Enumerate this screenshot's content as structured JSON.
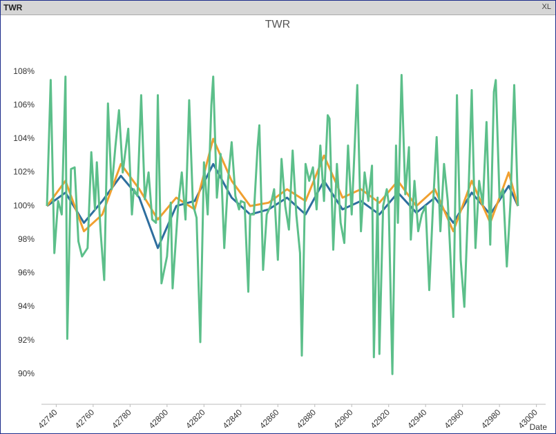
{
  "window": {
    "title": "TWR",
    "button": "XL"
  },
  "chart_data": {
    "type": "line",
    "title": "TWR",
    "x_label": "Date",
    "xlim": [
      42732,
      43005
    ],
    "ylim": [
      88.2,
      110
    ],
    "xticks": [
      42740,
      42760,
      42780,
      42800,
      42820,
      42840,
      42860,
      42880,
      42900,
      42920,
      42940,
      42960,
      42980,
      43000
    ],
    "yticks": [
      {
        "value": 90,
        "label": "90%"
      },
      {
        "value": 92,
        "label": "92%"
      },
      {
        "value": 94,
        "label": "94%"
      },
      {
        "value": 96,
        "label": "96%"
      },
      {
        "value": 98,
        "label": "98%"
      },
      {
        "value": 100,
        "label": "100%"
      },
      {
        "value": 102,
        "label": "102%"
      },
      {
        "value": 104,
        "label": "104%"
      },
      {
        "value": 106,
        "label": "106%"
      },
      {
        "value": 108,
        "label": "108%"
      }
    ],
    "grid": false,
    "series": [
      {
        "color": "#2e6e9e",
        "x": [
          42735,
          42745,
          42755,
          42765,
          42775,
          42785,
          42795,
          42805,
          42815,
          42825,
          42835,
          42845,
          42855,
          42865,
          42875,
          42885,
          42895,
          42905,
          42915,
          42925,
          42935,
          42945,
          42955,
          42965,
          42975,
          42985,
          42990
        ],
        "values": [
          100,
          100.8,
          99,
          100.3,
          101.8,
          100.5,
          97.5,
          100,
          100.3,
          102.5,
          100.5,
          99.5,
          99.8,
          100.5,
          99.5,
          101.5,
          99.8,
          100.3,
          99.5,
          100.8,
          99.6,
          100.5,
          99,
          100.8,
          99.5,
          101.2,
          100
        ]
      },
      {
        "color": "#f0a030",
        "x": [
          42735,
          42745,
          42755,
          42765,
          42775,
          42785,
          42795,
          42805,
          42815,
          42825,
          42835,
          42845,
          42855,
          42865,
          42875,
          42885,
          42895,
          42905,
          42915,
          42925,
          42935,
          42945,
          42955,
          42965,
          42975,
          42985,
          42990
        ],
        "values": [
          100,
          101.5,
          98.5,
          99.5,
          102.5,
          101,
          99.2,
          100.5,
          99.8,
          104,
          101.5,
          100,
          100.2,
          101,
          100.3,
          103,
          100.5,
          101,
          100.2,
          101.5,
          100,
          101,
          98.5,
          101.5,
          99,
          102,
          100
        ]
      },
      {
        "color": "#5cbf8a",
        "x": [
          42735,
          42737,
          42739,
          42741,
          42743,
          42745,
          42746,
          42748,
          42750,
          42752,
          42754,
          42757,
          42759,
          42761,
          42762,
          42764,
          42766,
          42768,
          42770,
          42772,
          42774,
          42776,
          42779,
          42781,
          42782,
          42784,
          42786,
          42788,
          42790,
          42792,
          42794,
          42795,
          42797,
          42800,
          42802,
          42803,
          42806,
          42808,
          42810,
          42812,
          42814,
          42816,
          42818,
          42820,
          42822,
          42824,
          42825,
          42827,
          42829,
          42831,
          42833,
          42835,
          42837,
          42839,
          42840,
          42842,
          42844,
          42845,
          42847,
          42849,
          42850,
          42852,
          42854,
          42856,
          42858,
          42860,
          42862,
          42864,
          42866,
          42868,
          42870,
          42872,
          42873,
          42875,
          42877,
          42879,
          42881,
          42883,
          42885,
          42887,
          42888,
          42890,
          42892,
          42894,
          42896,
          42898,
          42900,
          42901,
          42903,
          42905,
          42907,
          42909,
          42911,
          42912,
          42914,
          42915,
          42917,
          42919,
          42920,
          42922,
          42924,
          42925,
          42927,
          42929,
          42931,
          42932,
          42934,
          42936,
          42938,
          42940,
          42942,
          42944,
          42946,
          42948,
          42950,
          42952,
          42953,
          42955,
          42957,
          42959,
          42961,
          42963,
          42965,
          42967,
          42969,
          42971,
          42973,
          42975,
          42977,
          42978,
          42980,
          42982,
          42984,
          42986,
          42988,
          42990
        ],
        "values": [
          100,
          107.5,
          97.2,
          100.3,
          99.5,
          107.7,
          92.1,
          102.2,
          102.3,
          97.9,
          97,
          97.5,
          103.2,
          99.8,
          102.6,
          98.5,
          95.6,
          106.1,
          101,
          103.5,
          105.7,
          102,
          104.6,
          99.5,
          101,
          100.6,
          106.6,
          100.4,
          102,
          99.2,
          99,
          106.6,
          95.4,
          97,
          100.2,
          95.1,
          100,
          102,
          99.2,
          106.3,
          100.1,
          99.3,
          91.9,
          102.6,
          99.5,
          106,
          107.7,
          100.5,
          103.1,
          97.5,
          101.5,
          103.8,
          100.6,
          99.8,
          100.3,
          100.2,
          94.9,
          99.5,
          99.5,
          103.5,
          104.8,
          96.2,
          99.5,
          100,
          101,
          96.8,
          102.8,
          100,
          98.6,
          103.3,
          99.5,
          97.2,
          91.1,
          102.5,
          101.5,
          102.3,
          99.8,
          103.6,
          100.3,
          105.4,
          105.2,
          97.4,
          102.5,
          99,
          97.8,
          103.6,
          99.5,
          102,
          107.2,
          98.5,
          102,
          100.3,
          102.4,
          91,
          100.5,
          91.2,
          100,
          101,
          100.2,
          90,
          103.6,
          99,
          107.8,
          100.7,
          103.5,
          98,
          101.5,
          98.5,
          99.5,
          100,
          95,
          100,
          104.1,
          98.5,
          102.5,
          100.3,
          98,
          93.4,
          106.6,
          96.8,
          94,
          100,
          106.9,
          97.5,
          101.5,
          100.1,
          105,
          97.7,
          106.8,
          107.5,
          100.5,
          101,
          96.4,
          100.3,
          107.2,
          100
        ]
      }
    ]
  }
}
